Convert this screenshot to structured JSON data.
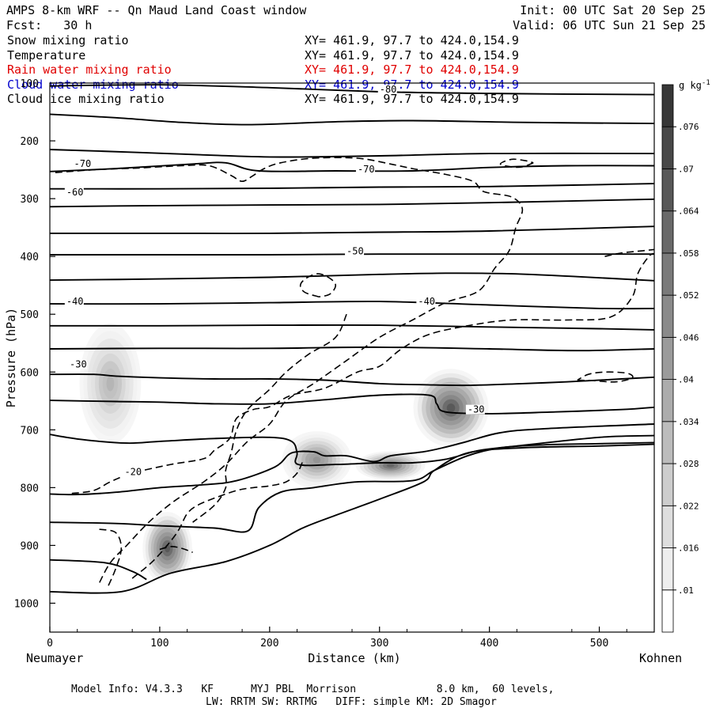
{
  "header": {
    "title": "AMPS 8-km WRF -- Qn Maud Land Coast window",
    "forecast": "Fcst:   30 h",
    "init": "Init: 00 UTC Sat 20 Sep 25",
    "valid": "Valid: 06 UTC Sun 21 Sep 25"
  },
  "legend": [
    {
      "name": "Snow mixing ratio",
      "coords": "XY= 461.9, 97.7 to 424.0,154.9",
      "color": "#000000"
    },
    {
      "name": "Temperature",
      "coords": "XY= 461.9, 97.7 to 424.0,154.9",
      "color": "#000000"
    },
    {
      "name": "Rain water mixing ratio",
      "coords": "XY= 461.9, 97.7 to 424.0,154.9",
      "color": "#e00000"
    },
    {
      "name": "Cloud water mixing ratio",
      "coords": "XY= 461.9, 97.7 to 424.0,154.9",
      "color": "#0000cc"
    },
    {
      "name": "Cloud ice mixing ratio",
      "coords": "XY= 461.9, 97.7 to 424.0,154.9",
      "color": "#000000"
    }
  ],
  "footer": {
    "line1": "Model Info: V4.3.3   KF      MYJ PBL  Morrison             8.0 km,  60 levels,",
    "line2": "LW: RRTM SW: RRTMG   DIFF: simple KM: 2D Smagor"
  },
  "chart_data": {
    "type": "cross-section",
    "title": "AMPS 8-km WRF -- Qn Maud Land Coast window",
    "xlabel": "Distance (km)",
    "ylabel": "Pressure (hPa)",
    "xlim": [
      0,
      550
    ],
    "ylim": [
      1050,
      100
    ],
    "x_ticks": [
      0,
      100,
      200,
      300,
      400,
      500
    ],
    "y_ticks": [
      100,
      200,
      300,
      400,
      500,
      600,
      700,
      800,
      900,
      1000
    ],
    "x_endpoints": {
      "left": "Neumayer",
      "right": "Kohnen"
    },
    "colorbar": {
      "unit": "g kg",
      "unit_exp": "-1",
      "levels": [
        0.01,
        0.016,
        0.022,
        0.028,
        0.034,
        0.04,
        0.046,
        0.052,
        0.058,
        0.064,
        0.07,
        0.076
      ]
    },
    "isotherm_labels": [
      {
        "text": "-80",
        "x": 300,
        "p": 115
      },
      {
        "text": "-70",
        "x": 22,
        "p": 244
      },
      {
        "text": "-70",
        "x": 280,
        "p": 253
      },
      {
        "text": "-60",
        "x": 15,
        "p": 293
      },
      {
        "text": "-50",
        "x": 270,
        "p": 395
      },
      {
        "text": "-40",
        "x": 15,
        "p": 482
      },
      {
        "text": "-40",
        "x": 335,
        "p": 482
      },
      {
        "text": "-30",
        "x": 18,
        "p": 591
      },
      {
        "text": "-30",
        "x": 380,
        "p": 669
      },
      {
        "text": "-20",
        "x": 68,
        "p": 777
      }
    ],
    "temperature_lines": [
      [
        [
          0,
          105
        ],
        [
          100,
          103
        ],
        [
          200,
          108
        ],
        [
          300,
          115
        ],
        [
          400,
          118
        ],
        [
          550,
          120
        ]
      ],
      [
        [
          0,
          154
        ],
        [
          60,
          160
        ],
        [
          120,
          168
        ],
        [
          180,
          172
        ],
        [
          260,
          167
        ],
        [
          330,
          165
        ],
        [
          430,
          168
        ],
        [
          550,
          170
        ]
      ],
      [
        [
          0,
          215
        ],
        [
          80,
          220
        ],
        [
          150,
          225
        ],
        [
          210,
          228
        ],
        [
          300,
          226
        ],
        [
          400,
          222
        ],
        [
          550,
          222
        ]
      ],
      [
        [
          0,
          253
        ],
        [
          60,
          248
        ],
        [
          130,
          240
        ],
        [
          160,
          238
        ],
        [
          190,
          252
        ],
        [
          260,
          252
        ],
        [
          330,
          252
        ],
        [
          400,
          246
        ],
        [
          470,
          243
        ],
        [
          550,
          243
        ]
      ],
      [
        [
          0,
          283
        ],
        [
          100,
          283
        ],
        [
          200,
          282
        ],
        [
          300,
          280
        ],
        [
          400,
          279
        ],
        [
          550,
          274
        ]
      ],
      [
        [
          0,
          314
        ],
        [
          100,
          312
        ],
        [
          200,
          311
        ],
        [
          300,
          310
        ],
        [
          400,
          307
        ],
        [
          550,
          301
        ]
      ],
      [
        [
          0,
          360
        ],
        [
          100,
          360
        ],
        [
          200,
          360
        ],
        [
          300,
          358
        ],
        [
          400,
          356
        ],
        [
          550,
          348
        ]
      ],
      [
        [
          0,
          397
        ],
        [
          100,
          397
        ],
        [
          200,
          397
        ],
        [
          300,
          396
        ],
        [
          400,
          396
        ],
        [
          550,
          396
        ]
      ],
      [
        [
          0,
          441
        ],
        [
          100,
          439
        ],
        [
          200,
          436
        ],
        [
          300,
          431
        ],
        [
          360,
          429
        ],
        [
          420,
          430
        ],
        [
          480,
          435
        ],
        [
          550,
          442
        ]
      ],
      [
        [
          0,
          482
        ],
        [
          100,
          482
        ],
        [
          200,
          480
        ],
        [
          300,
          478
        ],
        [
          400,
          484
        ],
        [
          500,
          490
        ],
        [
          550,
          490
        ]
      ],
      [
        [
          0,
          520
        ],
        [
          100,
          520
        ],
        [
          200,
          519
        ],
        [
          300,
          519
        ],
        [
          400,
          522
        ],
        [
          500,
          525
        ],
        [
          550,
          527
        ]
      ],
      [
        [
          0,
          560
        ],
        [
          100,
          559
        ],
        [
          200,
          559
        ],
        [
          300,
          557
        ],
        [
          400,
          560
        ],
        [
          480,
          563
        ],
        [
          550,
          560
        ]
      ],
      [
        [
          0,
          604
        ],
        [
          40,
          604
        ],
        [
          60,
          607
        ],
        [
          100,
          610
        ],
        [
          150,
          612
        ],
        [
          200,
          612
        ],
        [
          250,
          614
        ],
        [
          300,
          620
        ],
        [
          340,
          622
        ],
        [
          380,
          623
        ],
        [
          430,
          620
        ],
        [
          470,
          617
        ],
        [
          520,
          612
        ],
        [
          550,
          609
        ]
      ],
      [
        [
          0,
          649
        ],
        [
          60,
          651
        ],
        [
          100,
          652
        ],
        [
          150,
          655
        ],
        [
          200,
          655
        ],
        [
          250,
          648
        ],
        [
          300,
          640
        ],
        [
          345,
          640
        ],
        [
          352,
          655
        ],
        [
          360,
          669
        ],
        [
          400,
          672
        ],
        [
          460,
          669
        ],
        [
          520,
          665
        ],
        [
          550,
          661
        ]
      ],
      [
        [
          0,
          708
        ],
        [
          30,
          717
        ],
        [
          70,
          723
        ],
        [
          100,
          720
        ],
        [
          150,
          715
        ],
        [
          200,
          713
        ],
        [
          220,
          720
        ],
        [
          225,
          740
        ],
        [
          226,
          760
        ],
        [
          260,
          760
        ],
        [
          300,
          757
        ],
        [
          330,
          757
        ],
        [
          360,
          751
        ],
        [
          390,
          736
        ],
        [
          420,
          729
        ],
        [
          500,
          713
        ],
        [
          550,
          710
        ]
      ],
      [
        [
          0,
          811
        ],
        [
          25,
          812
        ],
        [
          60,
          808
        ],
        [
          100,
          800
        ],
        [
          140,
          795
        ],
        [
          170,
          788
        ],
        [
          205,
          764
        ],
        [
          220,
          740
        ],
        [
          240,
          738
        ],
        [
          250,
          745
        ],
        [
          270,
          745
        ],
        [
          295,
          755
        ],
        [
          310,
          745
        ],
        [
          340,
          738
        ],
        [
          360,
          730
        ],
        [
          380,
          720
        ],
        [
          410,
          705
        ],
        [
          450,
          698
        ],
        [
          550,
          690
        ]
      ],
      [
        [
          0,
          860
        ],
        [
          60,
          862
        ],
        [
          100,
          866
        ],
        [
          150,
          870
        ],
        [
          180,
          875
        ],
        [
          190,
          835
        ],
        [
          210,
          808
        ],
        [
          240,
          800
        ],
        [
          280,
          790
        ],
        [
          330,
          788
        ],
        [
          350,
          770
        ],
        [
          380,
          745
        ],
        [
          410,
          731
        ],
        [
          450,
          726
        ],
        [
          500,
          724
        ],
        [
          550,
          722
        ]
      ],
      [
        [
          0,
          925
        ],
        [
          50,
          930
        ],
        [
          75,
          945
        ],
        [
          88,
          959
        ]
      ],
      [
        [
          0,
          980
        ],
        [
          65,
          980
        ],
        [
          110,
          948
        ],
        [
          160,
          928
        ],
        [
          200,
          900
        ],
        [
          230,
          870
        ],
        [
          260,
          848
        ],
        [
          300,
          820
        ],
        [
          340,
          790
        ],
        [
          350,
          770
        ],
        [
          380,
          740
        ],
        [
          430,
          731
        ],
        [
          500,
          728
        ],
        [
          550,
          725
        ]
      ]
    ],
    "snow_dashed_lines": [
      [
        [
          5,
          255
        ],
        [
          40,
          250
        ],
        [
          80,
          247
        ],
        [
          120,
          243
        ],
        [
          145,
          243
        ],
        [
          165,
          260
        ],
        [
          175,
          270
        ],
        [
          185,
          260
        ],
        [
          195,
          248
        ],
        [
          210,
          238
        ],
        [
          240,
          230
        ],
        [
          280,
          230
        ],
        [
          310,
          240
        ],
        [
          330,
          248
        ],
        [
          360,
          258
        ],
        [
          385,
          270
        ],
        [
          395,
          288
        ],
        [
          420,
          297
        ],
        [
          430,
          318
        ],
        [
          424,
          350
        ],
        [
          418,
          390
        ],
        [
          405,
          420
        ],
        [
          390,
          460
        ],
        [
          360,
          480
        ],
        [
          330,
          510
        ],
        [
          300,
          540
        ],
        [
          270,
          580
        ],
        [
          240,
          620
        ],
        [
          215,
          650
        ],
        [
          200,
          690
        ],
        [
          180,
          720
        ],
        [
          160,
          760
        ],
        [
          140,
          790
        ],
        [
          112,
          825
        ],
        [
          90,
          860
        ],
        [
          70,
          900
        ],
        [
          55,
          930
        ],
        [
          45,
          965
        ]
      ],
      [
        [
          20,
          810
        ],
        [
          40,
          805
        ],
        [
          55,
          790
        ],
        [
          75,
          775
        ],
        [
          110,
          760
        ],
        [
          140,
          750
        ],
        [
          150,
          735
        ],
        [
          160,
          722
        ],
        [
          165,
          710
        ],
        [
          170,
          680
        ],
        [
          185,
          665
        ],
        [
          200,
          660
        ],
        [
          220,
          640
        ],
        [
          250,
          628
        ],
        [
          280,
          600
        ],
        [
          300,
          590
        ],
        [
          320,
          560
        ],
        [
          345,
          535
        ],
        [
          380,
          520
        ],
        [
          420,
          510
        ],
        [
          470,
          510
        ],
        [
          510,
          505
        ],
        [
          530,
          470
        ],
        [
          535,
          430
        ],
        [
          545,
          400
        ],
        [
          550,
          395
        ]
      ],
      [
        [
          45,
          872
        ],
        [
          60,
          878
        ],
        [
          65,
          905
        ],
        [
          60,
          940
        ],
        [
          52,
          975
        ]
      ],
      [
        [
          75,
          957
        ],
        [
          95,
          925
        ],
        [
          115,
          880
        ],
        [
          125,
          845
        ],
        [
          135,
          830
        ],
        [
          150,
          818
        ],
        [
          170,
          805
        ],
        [
          185,
          800
        ],
        [
          200,
          797
        ],
        [
          215,
          790
        ],
        [
          225,
          775
        ],
        [
          230,
          755
        ]
      ],
      [
        [
          270,
          500
        ],
        [
          260,
          540
        ],
        [
          235,
          570
        ],
        [
          215,
          600
        ],
        [
          200,
          630
        ],
        [
          180,
          665
        ],
        [
          170,
          700
        ],
        [
          165,
          740
        ],
        [
          160,
          770
        ],
        [
          160,
          800
        ],
        [
          150,
          830
        ],
        [
          130,
          860
        ]
      ],
      [
        [
          245,
          470
        ],
        [
          232,
          462
        ],
        [
          228,
          450
        ],
        [
          233,
          438
        ],
        [
          244,
          430
        ],
        [
          255,
          438
        ],
        [
          260,
          450
        ],
        [
          255,
          465
        ],
        [
          245,
          470
        ]
      ],
      [
        [
          440,
          238
        ],
        [
          430,
          245
        ],
        [
          420,
          245
        ],
        [
          410,
          240
        ],
        [
          420,
          232
        ],
        [
          432,
          234
        ],
        [
          440,
          238
        ]
      ],
      [
        [
          480,
          614
        ],
        [
          495,
          615
        ],
        [
          515,
          617
        ],
        [
          530,
          610
        ],
        [
          525,
          602
        ],
        [
          505,
          600
        ],
        [
          490,
          604
        ],
        [
          480,
          614
        ]
      ],
      [
        [
          505,
          400
        ],
        [
          520,
          394
        ],
        [
          540,
          390
        ],
        [
          550,
          388
        ]
      ],
      [
        [
          100,
          907
        ],
        [
          110,
          902
        ],
        [
          120,
          905
        ],
        [
          130,
          912
        ]
      ]
    ],
    "hydrometeor_shading": [
      {
        "x": 55,
        "p": 620,
        "rx": 35,
        "rp": 130,
        "max": 0.035
      },
      {
        "x": 243,
        "p": 752,
        "rx": 35,
        "rp": 55,
        "max": 0.05
      },
      {
        "x": 310,
        "p": 762,
        "rx": 35,
        "rp": 28,
        "max": 0.065
      },
      {
        "x": 365,
        "p": 662,
        "rx": 38,
        "rp": 75,
        "max": 0.072
      },
      {
        "x": 107,
        "p": 905,
        "rx": 25,
        "rp": 70,
        "max": 0.072
      }
    ]
  }
}
